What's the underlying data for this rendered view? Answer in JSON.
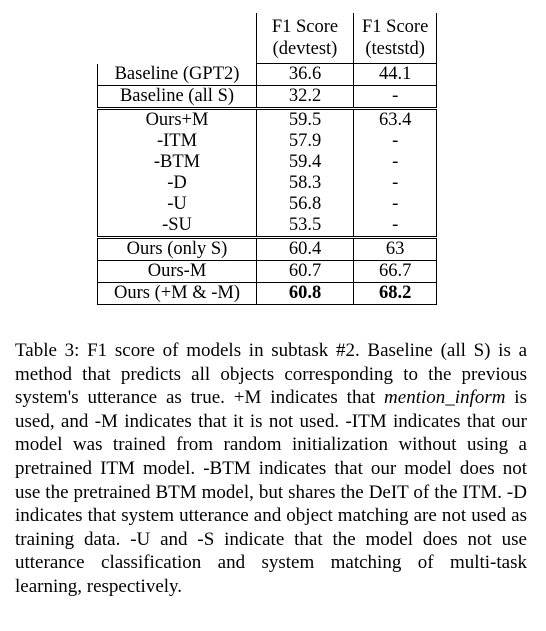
{
  "table": {
    "header": {
      "col1": "",
      "col2_line1": "F1 Score",
      "col2_line2": "(devtest)",
      "col3_line1": "F1 Score",
      "col3_line2": "(teststd)"
    },
    "rows": [
      {
        "model": "Baseline (GPT2)",
        "devtest": "36.6",
        "teststd": "44.1"
      },
      {
        "model": "Baseline (all S)",
        "devtest": "32.2",
        "teststd": "-"
      },
      {
        "model": "Ours+M",
        "devtest": "59.5",
        "teststd": "63.4"
      },
      {
        "model": "-ITM",
        "devtest": "57.9",
        "teststd": "-"
      },
      {
        "model": "-BTM",
        "devtest": "59.4",
        "teststd": "-"
      },
      {
        "model": "-D",
        "devtest": "58.3",
        "teststd": "-"
      },
      {
        "model": "-U",
        "devtest": "56.8",
        "teststd": "-"
      },
      {
        "model": "-SU",
        "devtest": "53.5",
        "teststd": "-"
      },
      {
        "model": "Ours (only S)",
        "devtest": "60.4",
        "teststd": "63"
      },
      {
        "model": "Ours-M",
        "devtest": "60.7",
        "teststd": "66.7"
      },
      {
        "model": "Ours (+M & -M)",
        "devtest": "60.8",
        "teststd": "68.2"
      }
    ]
  },
  "caption": {
    "part1": "Table 3: F1 score of models in subtask #2. Baseline (all S) is a method that predicts all objects corresponding to the previous system's utterance as true. +M indicates that ",
    "emphasis": "mention_inform",
    "part2": " is used, and -M indicates that it is not used. -ITM indicates that our model was trained from random initialization without using a pretrained ITM model. -BTM indicates that our model does not use the pretrained BTM model, but shares the DeIT of the ITM. -D indicates that system utterance and object matching are not used as training data. -U and -S indicate that the model does not use utterance classification and system matching of multi-task learning, respectively."
  }
}
